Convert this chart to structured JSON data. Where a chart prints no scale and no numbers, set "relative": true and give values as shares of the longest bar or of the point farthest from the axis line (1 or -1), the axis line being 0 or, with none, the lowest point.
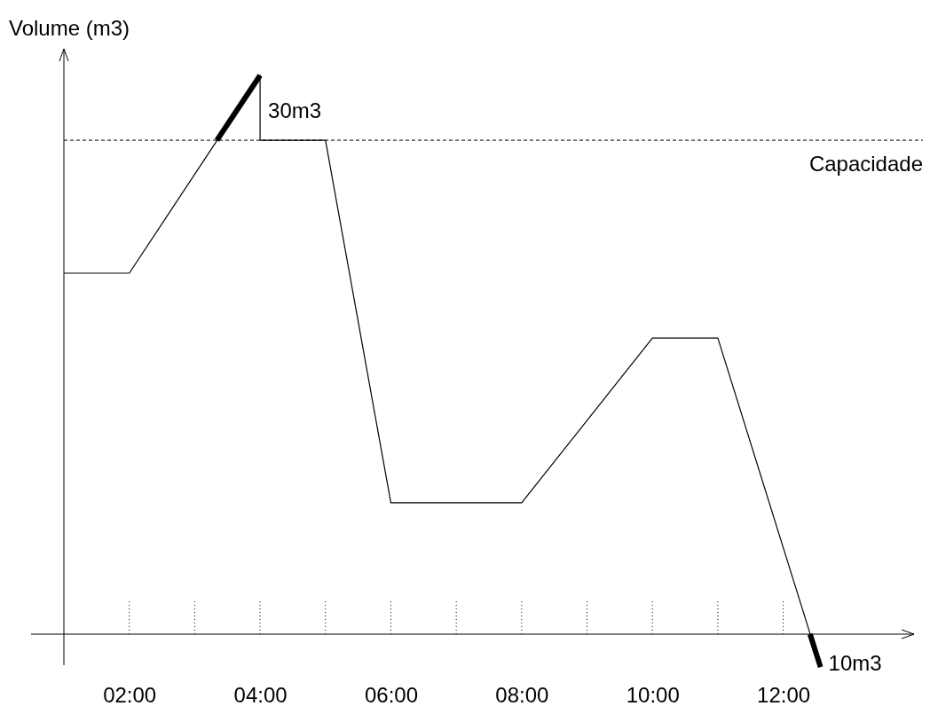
{
  "chart_data": {
    "type": "line",
    "relative": true,
    "ylabel": "Volume (m3)",
    "tick_labels": "x",
    "xlim": [
      1,
      14
    ],
    "xticks": [
      {
        "value": 2,
        "label": "02:00"
      },
      {
        "value": 4,
        "label": "04:00"
      },
      {
        "value": 6,
        "label": "06:00"
      },
      {
        "value": 8,
        "label": "08:00"
      },
      {
        "value": 10,
        "label": "10:00"
      },
      {
        "value": 12,
        "label": "12:00"
      }
    ],
    "series": [
      {
        "color": "#000000",
        "x": [
          1,
          2,
          4,
          4,
          5,
          6,
          8,
          10,
          11,
          12.57
        ],
        "values": [
          0.646,
          0.646,
          1,
          0.884,
          0.884,
          0.235,
          0.235,
          0.53,
          0.53,
          -0.059
        ]
      },
      {
        "color": "#000000",
        "x": [
          3.34,
          4
        ],
        "values": [
          0.884,
          1
        ]
      },
      {
        "color": "#000000",
        "x": [
          12.41,
          12.57
        ],
        "values": [
          0,
          -0.059
        ]
      }
    ],
    "ref_lines": [
      {
        "axis": "y",
        "value": 0.884,
        "label": "Capacidade",
        "line_style": "dashed",
        "color": "#000000"
      }
    ],
    "annotations": [
      {
        "text": "30m3",
        "x": 4,
        "y": 0.94
      },
      {
        "text": "10m3",
        "x": 12.57,
        "y": -0.059
      }
    ]
  }
}
